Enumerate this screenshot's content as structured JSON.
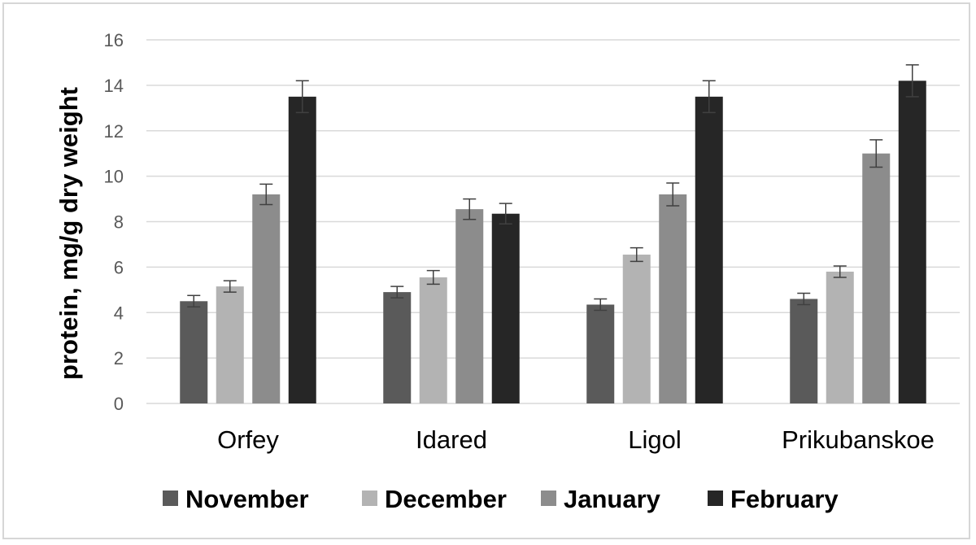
{
  "chart_data": {
    "type": "bar",
    "title": "",
    "xlabel": "",
    "ylabel": "protein, mg/g dry weight",
    "ylim": [
      0,
      16
    ],
    "yticks": [
      0,
      2,
      4,
      6,
      8,
      10,
      12,
      14,
      16
    ],
    "grid": true,
    "legend_position": "bottom",
    "categories": [
      "Orfey",
      "Idared",
      "Ligol",
      "Prikubanskoe"
    ],
    "series": [
      {
        "name": "November",
        "color": "#5a5a5a",
        "values": [
          4.5,
          4.9,
          4.35,
          4.6
        ],
        "errors": [
          0.25,
          0.25,
          0.25,
          0.25
        ]
      },
      {
        "name": "December",
        "color": "#b3b3b3",
        "values": [
          5.15,
          5.55,
          6.55,
          5.8
        ],
        "errors": [
          0.25,
          0.3,
          0.3,
          0.25
        ]
      },
      {
        "name": "January",
        "color": "#8c8c8c",
        "values": [
          9.2,
          8.55,
          9.2,
          11.0
        ],
        "errors": [
          0.45,
          0.45,
          0.5,
          0.6
        ]
      },
      {
        "name": "February",
        "color": "#262626",
        "values": [
          13.5,
          8.35,
          13.5,
          14.2
        ],
        "errors": [
          0.7,
          0.45,
          0.7,
          0.7
        ]
      }
    ]
  }
}
